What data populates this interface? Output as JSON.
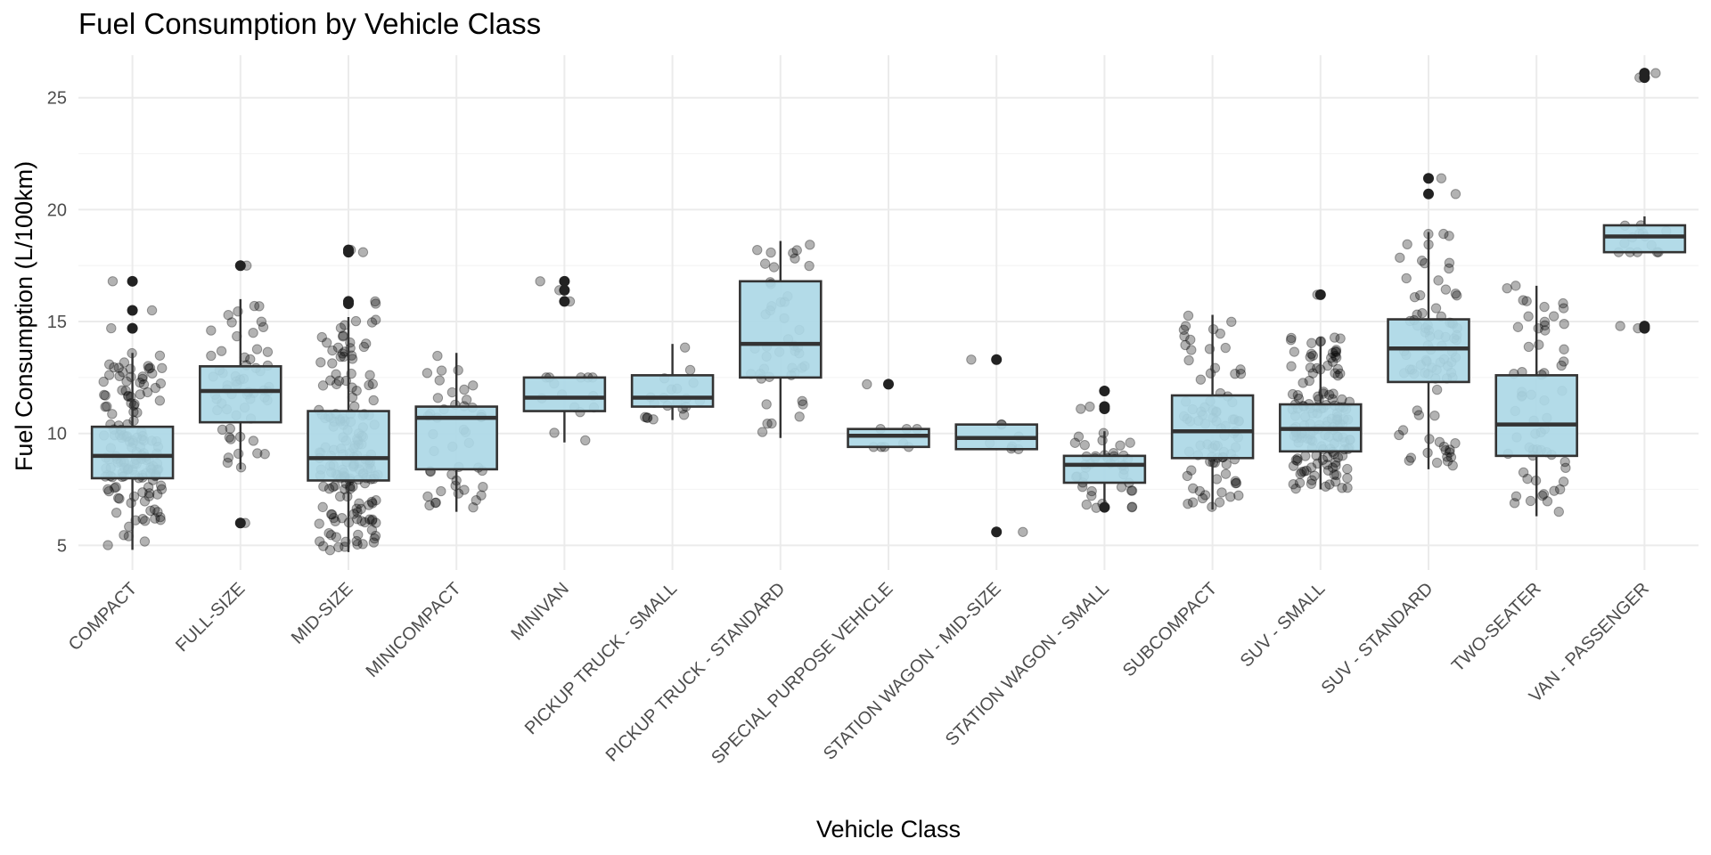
{
  "chart_data": {
    "type": "box",
    "title": "Fuel Consumption by Vehicle Class",
    "xlabel": "Vehicle Class",
    "ylabel": "Fuel Consumption (L/100km)",
    "ylim": [
      3.9,
      26.9
    ],
    "yticks": [
      5,
      10,
      15,
      20,
      25
    ],
    "grid": true,
    "legend": "none",
    "colors": {
      "box_fill": "#ADD8E6",
      "box_stroke": "#333333",
      "point": "#000000",
      "grid_major": "#EBEBEB",
      "grid_minor": "#F5F5F5"
    },
    "categories": [
      "COMPACT",
      "FULL-SIZE",
      "MID-SIZE",
      "MINICOMPACT",
      "MINIVAN",
      "PICKUP TRUCK - SMALL",
      "PICKUP TRUCK - STANDARD",
      "SPECIAL PURPOSE VEHICLE",
      "STATION WAGON - MID-SIZE",
      "STATION WAGON - SMALL",
      "SUBCOMPACT",
      "SUV - SMALL",
      "SUV - STANDARD",
      "TWO-SEATER",
      "VAN - PASSENGER"
    ],
    "boxes": [
      {
        "category": "COMPACT",
        "lower_whisker": 4.8,
        "q1": 8.0,
        "median": 9.0,
        "q3": 10.3,
        "upper_whisker": 13.6,
        "outliers": [
          14.7,
          15.5,
          16.8
        ]
      },
      {
        "category": "FULL-SIZE",
        "lower_whisker": 8.4,
        "q1": 10.5,
        "median": 11.9,
        "q3": 13.0,
        "upper_whisker": 16.0,
        "outliers": [
          6.0,
          17.5
        ]
      },
      {
        "category": "MID-SIZE",
        "lower_whisker": 4.7,
        "q1": 7.9,
        "median": 8.9,
        "q3": 11.0,
        "upper_whisker": 15.2,
        "outliers": [
          15.8,
          15.9,
          18.1,
          18.2
        ]
      },
      {
        "category": "MINICOMPACT",
        "lower_whisker": 6.5,
        "q1": 8.4,
        "median": 10.7,
        "q3": 11.2,
        "upper_whisker": 13.6,
        "outliers": []
      },
      {
        "category": "MINIVAN",
        "lower_whisker": 9.6,
        "q1": 11.0,
        "median": 11.6,
        "q3": 12.5,
        "upper_whisker": 12.5,
        "outliers": [
          15.9,
          16.4,
          16.8
        ]
      },
      {
        "category": "PICKUP TRUCK - SMALL",
        "lower_whisker": 10.6,
        "q1": 11.2,
        "median": 11.6,
        "q3": 12.6,
        "upper_whisker": 14.0,
        "outliers": []
      },
      {
        "category": "PICKUP TRUCK - STANDARD",
        "lower_whisker": 9.8,
        "q1": 12.5,
        "median": 14.0,
        "q3": 16.8,
        "upper_whisker": 18.6,
        "outliers": []
      },
      {
        "category": "SPECIAL PURPOSE VEHICLE",
        "lower_whisker": 9.4,
        "q1": 9.4,
        "median": 9.9,
        "q3": 10.2,
        "upper_whisker": 10.2,
        "outliers": [
          12.2
        ]
      },
      {
        "category": "STATION WAGON - MID-SIZE",
        "lower_whisker": 9.3,
        "q1": 9.3,
        "median": 9.8,
        "q3": 10.4,
        "upper_whisker": 10.4,
        "outliers": [
          5.6,
          13.3
        ]
      },
      {
        "category": "STATION WAGON - SMALL",
        "lower_whisker": 6.5,
        "q1": 7.8,
        "median": 8.6,
        "q3": 9.0,
        "upper_whisker": 10.1,
        "outliers": [
          6.7,
          11.1,
          11.2,
          11.9
        ]
      },
      {
        "category": "SUBCOMPACT",
        "lower_whisker": 6.6,
        "q1": 8.9,
        "median": 10.1,
        "q3": 11.7,
        "upper_whisker": 15.3,
        "outliers": []
      },
      {
        "category": "SUV - SMALL",
        "lower_whisker": 7.5,
        "q1": 9.2,
        "median": 10.2,
        "q3": 11.3,
        "upper_whisker": 14.3,
        "outliers": [
          16.2
        ]
      },
      {
        "category": "SUV - STANDARD",
        "lower_whisker": 8.4,
        "q1": 12.3,
        "median": 13.8,
        "q3": 15.1,
        "upper_whisker": 19.0,
        "outliers": [
          20.7,
          21.4
        ]
      },
      {
        "category": "TWO-SEATER",
        "lower_whisker": 6.3,
        "q1": 9.0,
        "median": 10.4,
        "q3": 12.6,
        "upper_whisker": 16.6,
        "outliers": []
      },
      {
        "category": "VAN - PASSENGER",
        "lower_whisker": 18.1,
        "q1": 18.1,
        "median": 18.8,
        "q3": 19.3,
        "upper_whisker": 19.7,
        "outliers": [
          14.7,
          14.8,
          25.9,
          26.1
        ]
      }
    ]
  }
}
